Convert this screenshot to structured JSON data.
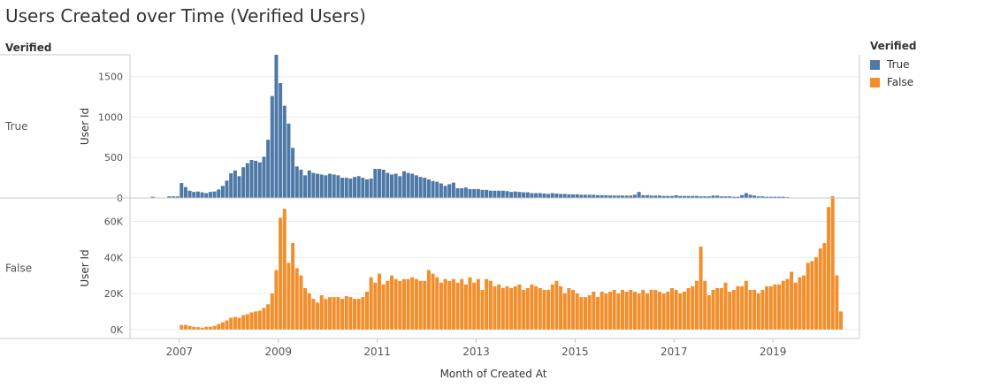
{
  "colors": {
    "true": "#4e79a7",
    "false": "#f28e2b",
    "grid": "#ebebeb",
    "axis": "#c8c8c8"
  },
  "chart_data": {
    "type": "bar",
    "title": "Users Created over Time (Verified Users)",
    "row_header": "Verified",
    "xlabel": "Month of Created At",
    "ylabel": "User Id",
    "x_ticks": [
      "2007",
      "2009",
      "2011",
      "2013",
      "2015",
      "2017",
      "2019"
    ],
    "x_range_months": [
      "2006-01",
      "2020-10"
    ],
    "legend": {
      "title": "Verified",
      "position": "top-right",
      "items": [
        "True",
        "False"
      ]
    },
    "panels": [
      {
        "name": "True",
        "start": "2006-06",
        "y_ticks": [
          "0",
          "500",
          "1000",
          "1500"
        ],
        "y_tick_values": [
          0,
          500,
          1000,
          1500
        ],
        "ylim": [
          0,
          1770
        ],
        "values": [
          15,
          5,
          5,
          5,
          20,
          20,
          20,
          185,
          135,
          90,
          75,
          80,
          70,
          60,
          75,
          80,
          105,
          150,
          215,
          305,
          340,
          270,
          380,
          430,
          470,
          460,
          440,
          510,
          720,
          1260,
          1770,
          1420,
          1140,
          920,
          620,
          390,
          350,
          280,
          340,
          310,
          300,
          290,
          280,
          300,
          290,
          280,
          250,
          250,
          240,
          260,
          270,
          250,
          230,
          240,
          360,
          360,
          350,
          310,
          290,
          300,
          270,
          330,
          310,
          300,
          280,
          260,
          250,
          230,
          210,
          200,
          180,
          150,
          170,
          190,
          120,
          120,
          130,
          110,
          110,
          110,
          100,
          100,
          90,
          90,
          90,
          90,
          85,
          75,
          80,
          75,
          70,
          70,
          60,
          60,
          60,
          55,
          50,
          60,
          55,
          50,
          50,
          45,
          45,
          45,
          40,
          40,
          40,
          40,
          35,
          35,
          35,
          30,
          30,
          30,
          30,
          30,
          30,
          40,
          75,
          35,
          35,
          30,
          30,
          30,
          25,
          25,
          25,
          35,
          25,
          25,
          25,
          25,
          25,
          20,
          20,
          20,
          30,
          30,
          20,
          20,
          20,
          15,
          15,
          35,
          60,
          40,
          30,
          20,
          20,
          15,
          15,
          15,
          15,
          15,
          10
        ]
      },
      {
        "name": "False",
        "start": "2006-06",
        "y_ticks": [
          "0K",
          "20K",
          "40K",
          "60K"
        ],
        "y_tick_values": [
          0,
          20000,
          40000,
          60000
        ],
        "ylim": [
          -5000,
          73000
        ],
        "values": [
          0,
          0,
          0,
          0,
          0,
          0,
          0,
          2500,
          2500,
          2000,
          1500,
          1300,
          1000,
          1500,
          1500,
          2000,
          3000,
          4000,
          5000,
          6500,
          7000,
          6500,
          8000,
          8500,
          9500,
          10000,
          10500,
          12000,
          14000,
          20000,
          33000,
          62000,
          67000,
          37000,
          48000,
          34000,
          30000,
          23000,
          20000,
          17000,
          15000,
          19000,
          17000,
          18000,
          18000,
          18000,
          17000,
          18500,
          18000,
          17000,
          17000,
          18000,
          21000,
          29000,
          26000,
          31000,
          25000,
          27000,
          30000,
          28000,
          27000,
          28000,
          28000,
          29000,
          28000,
          27000,
          27000,
          33000,
          31000,
          29000,
          26000,
          28000,
          27000,
          28000,
          26000,
          28000,
          25000,
          29000,
          26000,
          28000,
          22000,
          28000,
          27000,
          24000,
          25000,
          23000,
          24000,
          23000,
          24000,
          25000,
          22000,
          23000,
          25000,
          24000,
          23000,
          22000,
          22000,
          25000,
          27000,
          24000,
          20000,
          23000,
          22000,
          20000,
          18000,
          18000,
          19000,
          21000,
          18000,
          21000,
          20000,
          21000,
          22000,
          20000,
          22000,
          21000,
          22000,
          21000,
          20000,
          22000,
          20000,
          22000,
          22000,
          21000,
          20000,
          21000,
          23000,
          22000,
          20000,
          21000,
          23000,
          24000,
          27000,
          46000,
          27000,
          19000,
          22000,
          23000,
          23000,
          26000,
          21000,
          22000,
          24000,
          24000,
          27000,
          22000,
          22000,
          20000,
          22000,
          24000,
          24000,
          25000,
          25000,
          27000,
          28000,
          32000,
          26000,
          29000,
          30000,
          37000,
          38000,
          40000,
          45000,
          48000,
          68000,
          74000,
          30000,
          10000
        ]
      }
    ]
  }
}
